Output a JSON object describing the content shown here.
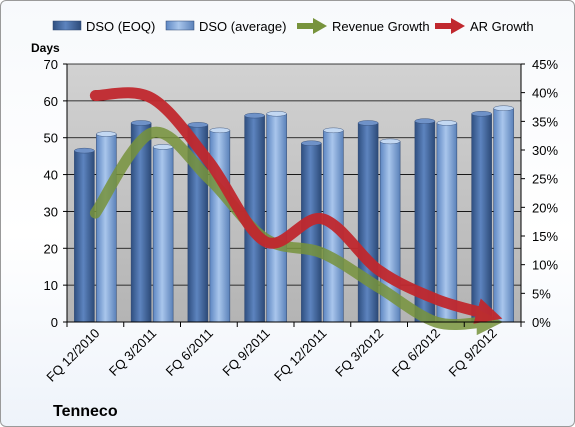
{
  "chart_data": {
    "type": "bar",
    "categories": [
      "FQ 12/2010",
      "FQ 3/2011",
      "FQ 6/2011",
      "FQ 9/2011",
      "FQ 12/2011",
      "FQ 3/2012",
      "FQ 6/2012",
      "FQ 9/2012"
    ],
    "series": [
      {
        "name": "DSO (EOQ)",
        "type": "bar",
        "axis": "left",
        "values": [
          46.5,
          54,
          53.5,
          56,
          48.5,
          54,
          54.5,
          56.5
        ]
      },
      {
        "name": "DSO (average)",
        "type": "bar",
        "axis": "left",
        "values": [
          51,
          47.5,
          52,
          56.5,
          52,
          49,
          54,
          58
        ]
      },
      {
        "name": "Revenue Growth",
        "type": "line",
        "axis": "right",
        "values": [
          19,
          33,
          25,
          14.5,
          12,
          6,
          0,
          0
        ]
      },
      {
        "name": "AR Growth",
        "type": "line",
        "axis": "right",
        "values": [
          39.5,
          39,
          28,
          14,
          18,
          9,
          4,
          1.5
        ]
      }
    ],
    "ylabel": "Days",
    "ylim": [
      0,
      70
    ],
    "yticks": [
      0,
      10,
      20,
      30,
      40,
      50,
      60,
      70
    ],
    "y2lim": [
      0,
      45
    ],
    "y2ticks": [
      "0%",
      "5%",
      "10%",
      "15%",
      "20%",
      "25%",
      "30%",
      "35%",
      "40%",
      "45%"
    ],
    "legend_position": "top",
    "grid": true,
    "company": "Tenneco",
    "colors": {
      "dso_eoq": "#4a6fa5",
      "dso_avg": "#8db3e2",
      "revenue_growth": "#77933c",
      "ar_growth": "#c0282e",
      "plot_bg": "#c3c3c3"
    }
  }
}
